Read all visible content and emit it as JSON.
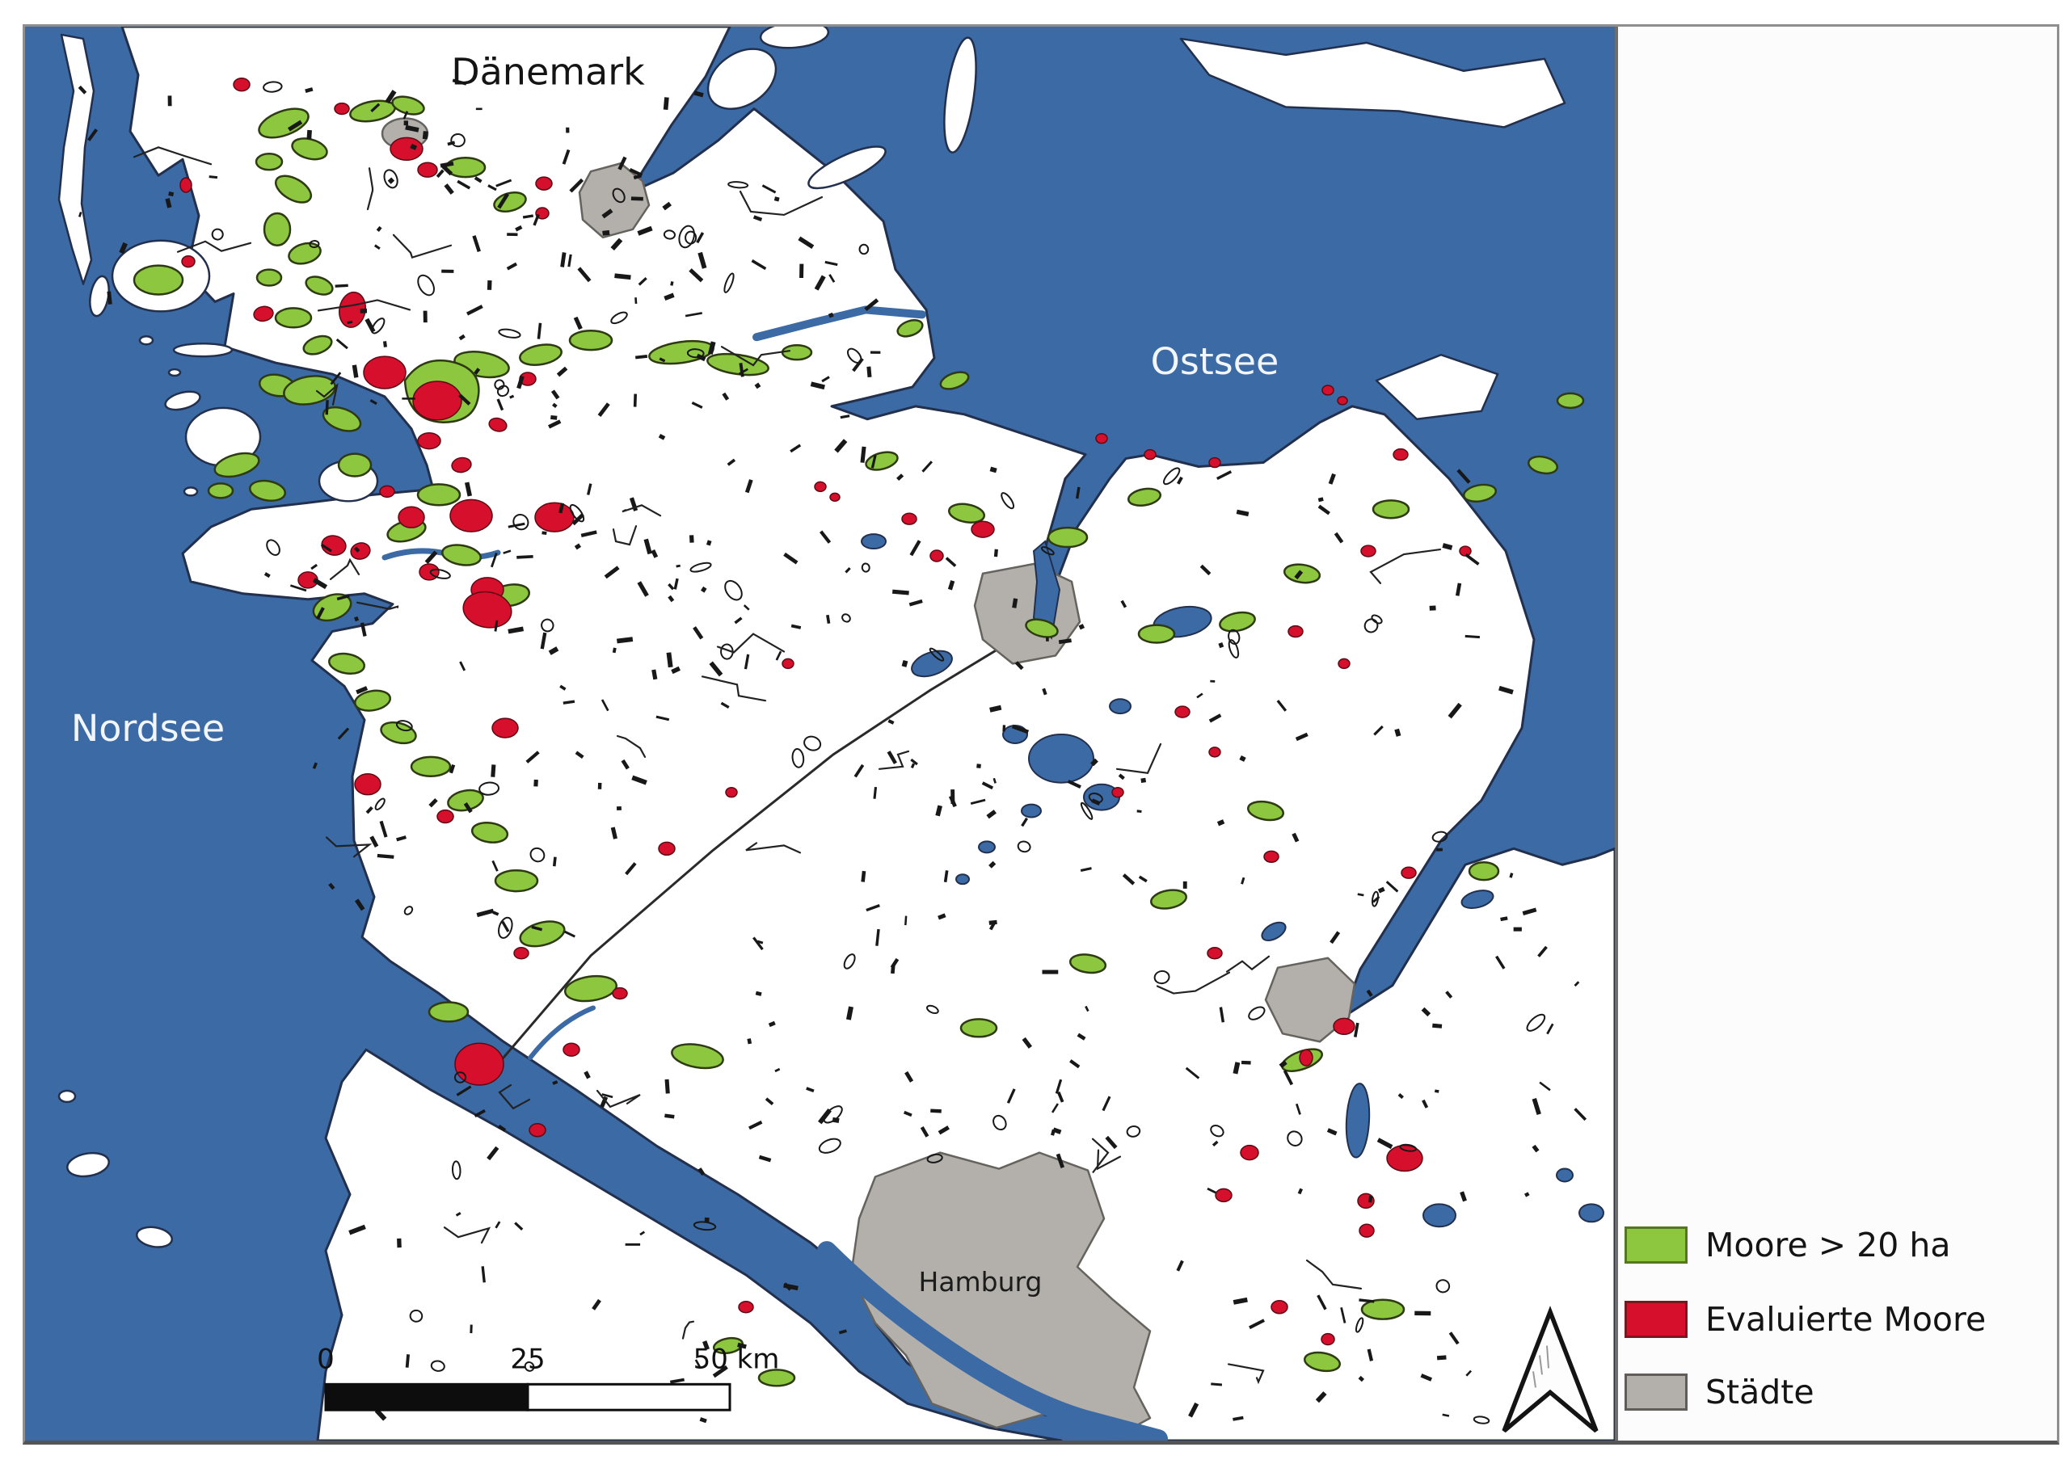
{
  "map": {
    "labels": {
      "denmark": "Dänemark",
      "baltic_sea": "Ostsee",
      "north_sea": "Nordsee",
      "hamburg": "Hamburg"
    },
    "scale_bar": {
      "ticks": [
        "0",
        "25",
        "50 km"
      ]
    },
    "north_arrow_icon": "north-arrow"
  },
  "legend": {
    "items": [
      {
        "label": "Moore > 20 ha",
        "color": "#8dc63f",
        "border": "#55771f"
      },
      {
        "label": "Evaluierte Moore",
        "color": "#d50f2c",
        "border": "#7e1420"
      },
      {
        "label": "Städte",
        "color": "#b3b0ac",
        "border": "#5f5c59"
      }
    ]
  },
  "colors": {
    "sea": "#3b6aa5",
    "land": "#ffffff",
    "coast": "#22304d",
    "moor_green": "#8dc63f",
    "moor_border": "#2e3a12",
    "eval_red": "#d50f2c",
    "city_gray": "#b3b0ac",
    "city_border": "#66635f",
    "texture_mark": "#181818",
    "frame": "#8f8f8f",
    "panel_bg": "#fcfcfc"
  }
}
